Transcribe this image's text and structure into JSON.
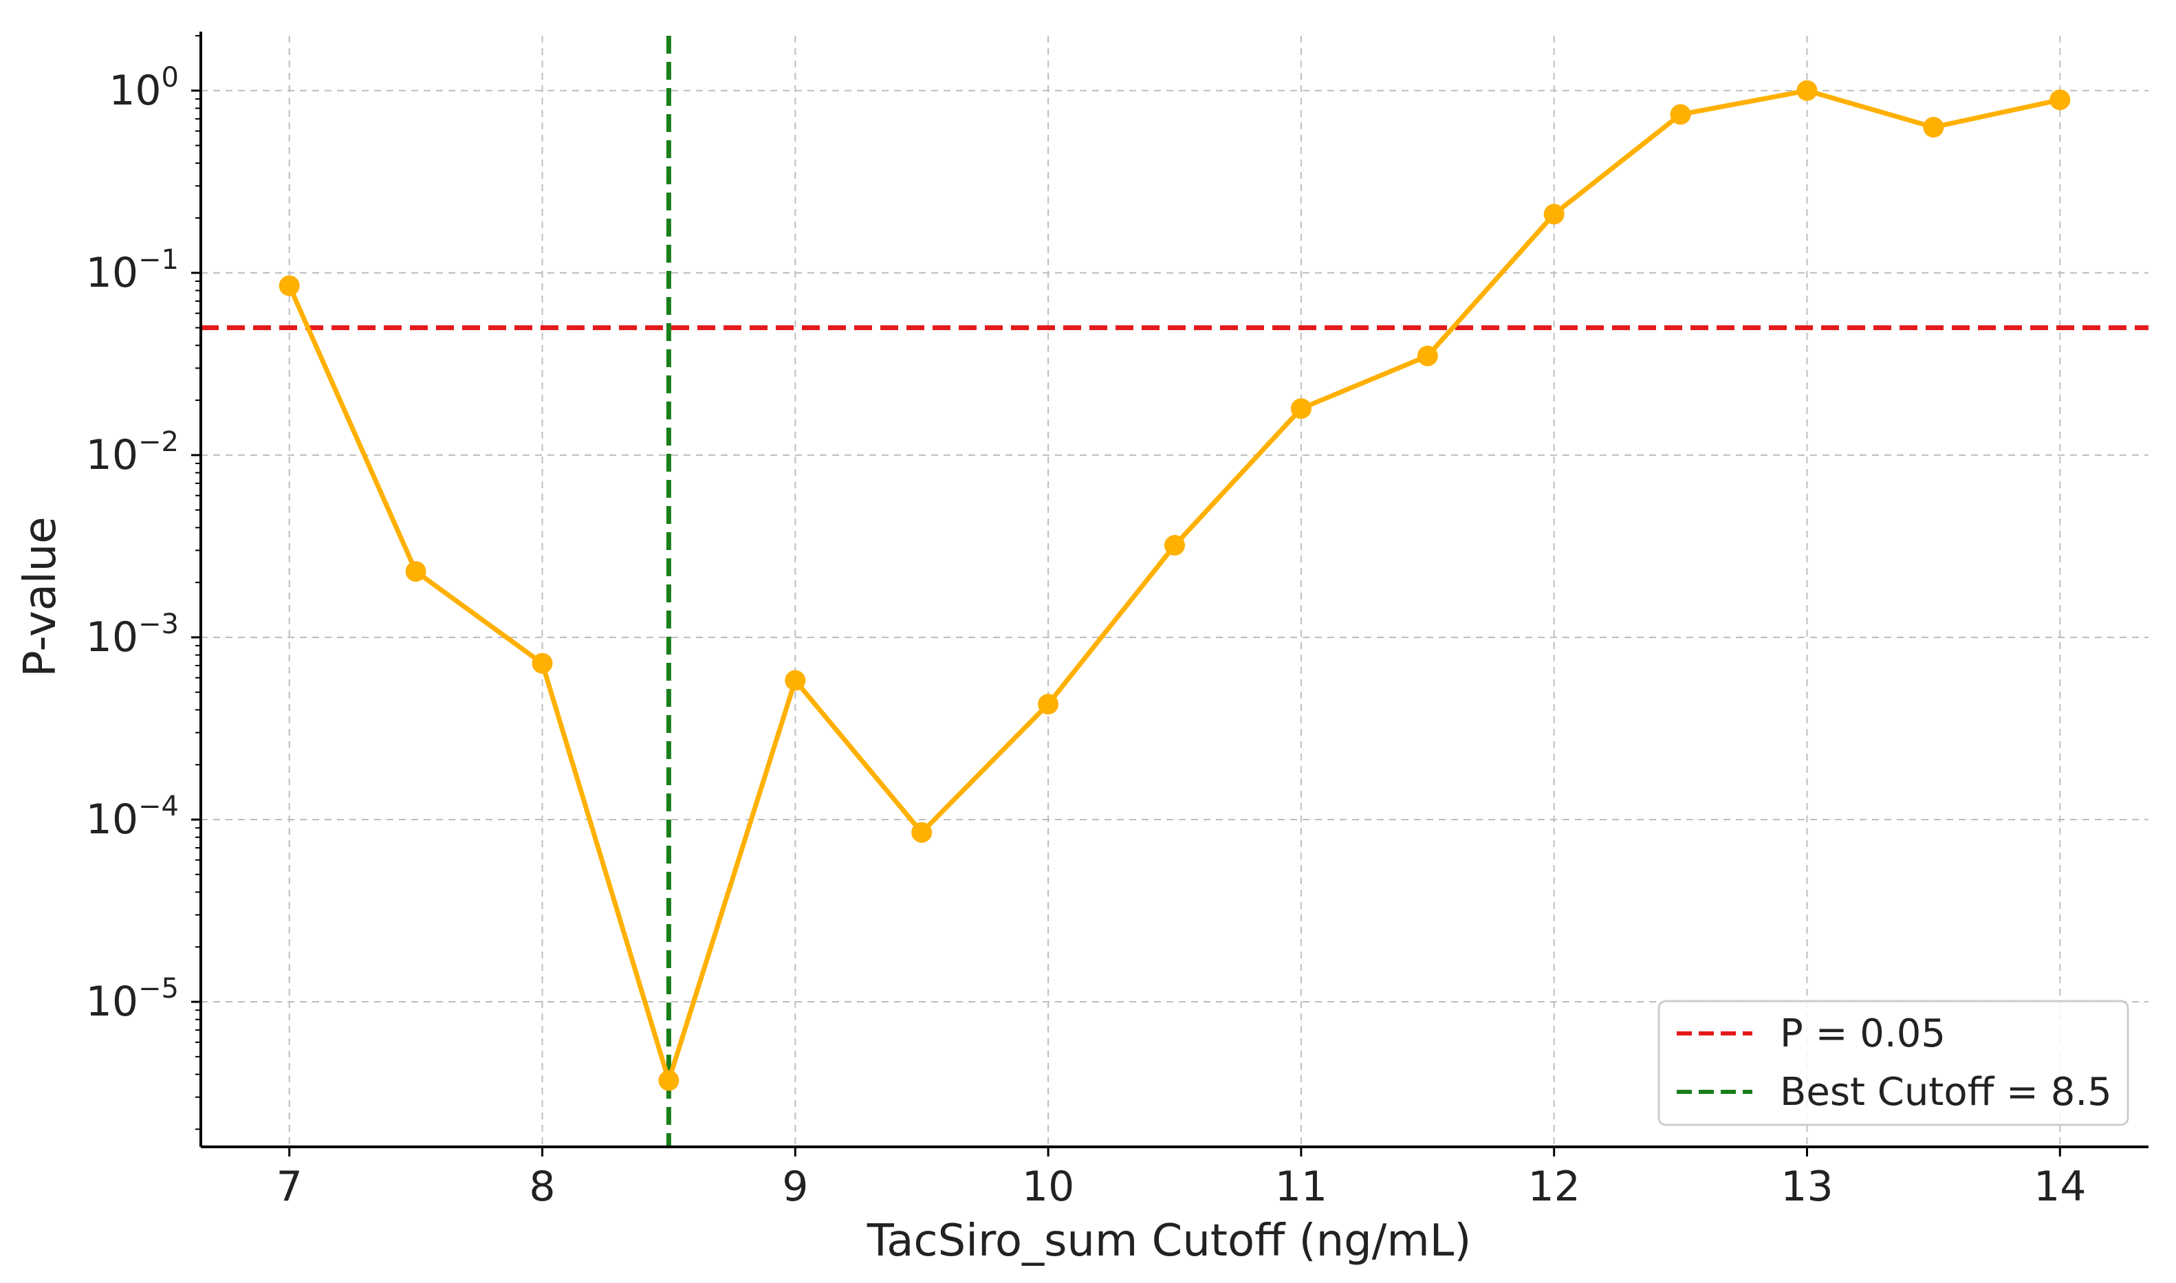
{
  "chart_data": {
    "type": "line",
    "title": "",
    "xlabel": "TacSiro_sum Cutoff (ng/mL)",
    "ylabel": "P-value",
    "yscale": "log",
    "xlim": [
      6.65,
      14.35
    ],
    "ylim": [
      1.6e-06,
      2.0
    ],
    "grid": true,
    "x_ticks": [
      7,
      8,
      9,
      10,
      11,
      12,
      13,
      14
    ],
    "y_ticks": [
      {
        "value": 1e-05,
        "base": "10",
        "exp": "−5"
      },
      {
        "value": 0.0001,
        "base": "10",
        "exp": "−4"
      },
      {
        "value": 0.001,
        "base": "10",
        "exp": "−3"
      },
      {
        "value": 0.01,
        "base": "10",
        "exp": "−2"
      },
      {
        "value": 0.1,
        "base": "10",
        "exp": "−1"
      },
      {
        "value": 1,
        "base": "10",
        "exp": "0"
      }
    ],
    "series": [
      {
        "color": "#FFB000",
        "x": [
          7,
          7.5,
          8,
          8.5,
          9,
          9.5,
          10,
          10.5,
          11,
          11.5,
          12,
          12.5,
          13,
          13.5,
          14
        ],
        "y": [
          0.085,
          0.0023,
          0.00072,
          3.7e-06,
          0.00058,
          8.5e-05,
          0.00043,
          0.0032,
          0.018,
          0.035,
          0.21,
          0.74,
          1.0,
          0.63,
          0.89
        ]
      }
    ],
    "reference_lines": [
      {
        "orientation": "horizontal",
        "value": 0.05,
        "color": "#E31A1C",
        "style": "dashed",
        "label": "P = 0.05"
      },
      {
        "orientation": "vertical",
        "value": 8.5,
        "color": "#1A7F1A",
        "style": "dashed",
        "label": "Best Cutoff = 8.5"
      }
    ],
    "legend": {
      "position": "bottom-right",
      "entries": [
        "P = 0.05",
        "Best Cutoff = 8.5"
      ]
    }
  }
}
